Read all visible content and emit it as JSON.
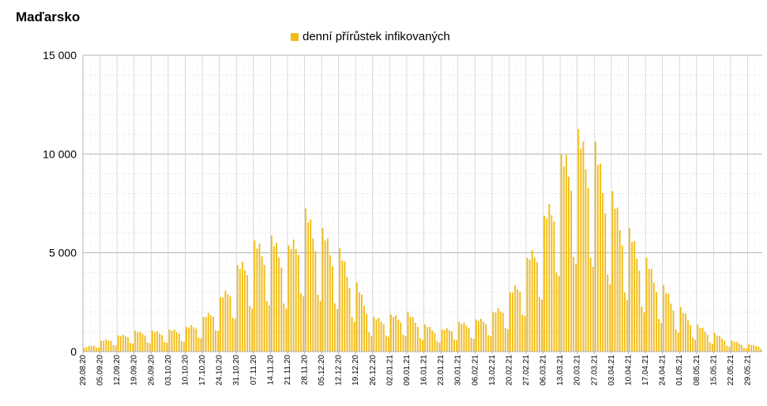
{
  "chart_data": {
    "type": "bar",
    "title": "Maďarsko",
    "xlabel": "",
    "ylabel": "",
    "ylim": [
      0,
      15000
    ],
    "yticks": [
      0,
      5000,
      10000,
      15000
    ],
    "ytick_labels": [
      "0",
      "5 000",
      "10 000",
      "15 000"
    ],
    "grid": true,
    "legend_position": "top-center",
    "bar_color": "#f2bb14",
    "series": [
      {
        "name": "denní přírůstek infikovaných",
        "keypoints": [
          [
            "2020-08-29",
            150
          ],
          [
            "2020-09-05",
            450
          ],
          [
            "2020-09-12",
            650
          ],
          [
            "2020-09-19",
            850
          ],
          [
            "2020-09-26",
            850
          ],
          [
            "2020-10-03",
            900
          ],
          [
            "2020-10-10",
            1000
          ],
          [
            "2020-10-17",
            1400
          ],
          [
            "2020-10-24",
            2200
          ],
          [
            "2020-10-31",
            3500
          ],
          [
            "2020-11-07",
            4500
          ],
          [
            "2020-11-14",
            4700
          ],
          [
            "2020-11-21",
            4300
          ],
          [
            "2020-11-28",
            5800
          ],
          [
            "2020-12-05",
            5000
          ],
          [
            "2020-12-12",
            4200
          ],
          [
            "2020-12-19",
            2800
          ],
          [
            "2020-12-26",
            1400
          ],
          [
            "2021-01-02",
            1500
          ],
          [
            "2021-01-09",
            1600
          ],
          [
            "2021-01-16",
            1100
          ],
          [
            "2021-01-23",
            900
          ],
          [
            "2021-01-30",
            1200
          ],
          [
            "2021-02-06",
            1300
          ],
          [
            "2021-02-13",
            1600
          ],
          [
            "2021-02-20",
            2400
          ],
          [
            "2021-02-27",
            3800
          ],
          [
            "2021-03-06",
            5500
          ],
          [
            "2021-03-13",
            8000
          ],
          [
            "2021-03-20",
            9000
          ],
          [
            "2021-03-27",
            8500
          ],
          [
            "2021-04-03",
            6500
          ],
          [
            "2021-04-10",
            5000
          ],
          [
            "2021-04-17",
            3800
          ],
          [
            "2021-04-24",
            2700
          ],
          [
            "2021-05-01",
            1800
          ],
          [
            "2021-05-08",
            1100
          ],
          [
            "2021-05-15",
            750
          ],
          [
            "2021-05-22",
            450
          ],
          [
            "2021-05-29",
            300
          ],
          [
            "2021-06-03",
            250
          ]
        ]
      }
    ],
    "x_start": "2020-08-29",
    "x_end": "2021-06-03",
    "x_tick_labels": [
      "29.08.20",
      "05.09.20",
      "12.09.20",
      "19.09.20",
      "26.09.20",
      "03.10.20",
      "10.10.20",
      "17.10.20",
      "24.10.20",
      "31.10.20",
      "07.11.20",
      "14.11.20",
      "21.11.20",
      "28.11.20",
      "05.12.20",
      "12.12.20",
      "19.12.20",
      "26.12.20",
      "02.01.21",
      "09.01.21",
      "16.01.21",
      "23.01.21",
      "30.01.21",
      "06.02.21",
      "13.02.21",
      "20.02.21",
      "27.02.21",
      "06.03.21",
      "13.03.21",
      "20.03.21",
      "27.03.21",
      "03.04.21",
      "10.04.21",
      "17.04.21",
      "24.04.21",
      "01.05.21",
      "08.05.21",
      "15.05.21",
      "22.05.21",
      "29.05.21"
    ]
  }
}
